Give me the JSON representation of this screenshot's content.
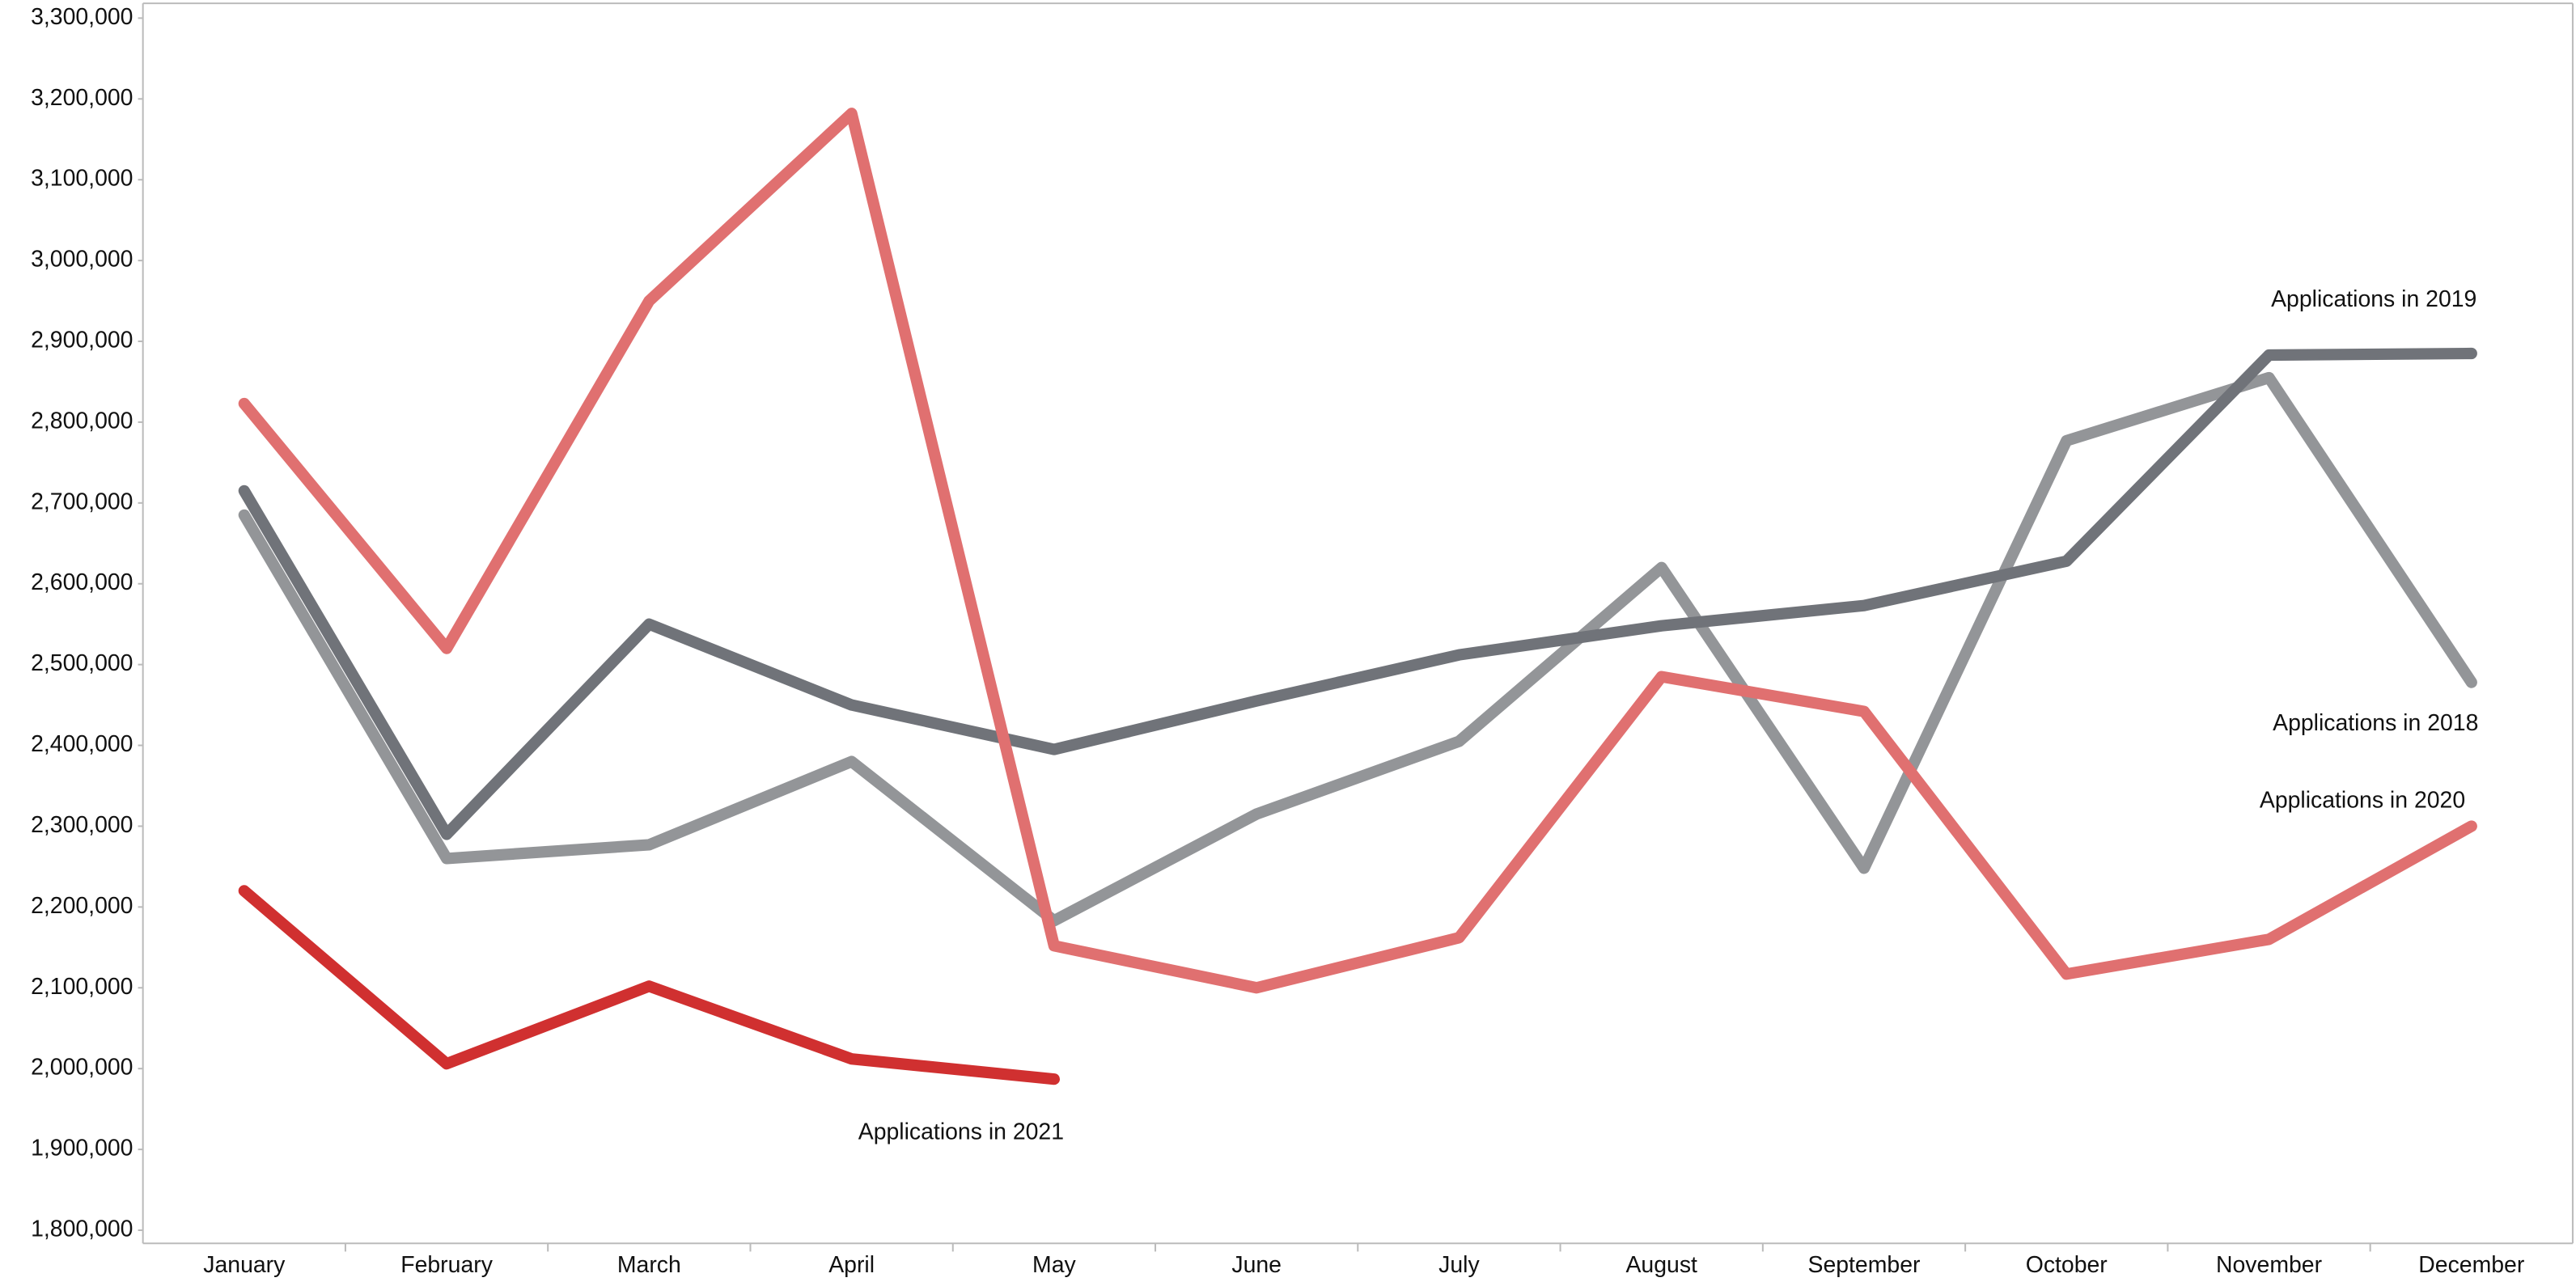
{
  "chart_data": {
    "type": "line",
    "categories": [
      "January",
      "February",
      "March",
      "April",
      "May",
      "June",
      "July",
      "August",
      "September",
      "October",
      "November",
      "December"
    ],
    "series": [
      {
        "name": "Applications in 2018",
        "color": "#939598",
        "values": [
          2685000,
          2260000,
          2277000,
          2380000,
          2183000,
          2315000,
          2405000,
          2620000,
          2248000,
          2777000,
          2855000,
          2478000
        ]
      },
      {
        "name": "Applications in 2019",
        "color": "#707379",
        "values": [
          2715000,
          2290000,
          2550000,
          2450000,
          2395000,
          2455000,
          2512000,
          2548000,
          2573000,
          2628000,
          2883000,
          2885000
        ]
      },
      {
        "name": "Applications in 2020",
        "color": "#e07070",
        "values": [
          2823000,
          2520000,
          2950000,
          3182000,
          2152000,
          2100000,
          2162000,
          2485000,
          2442000,
          2117000,
          2160000,
          2300000
        ]
      },
      {
        "name": "Applications in 2021",
        "color": "#d03030",
        "values": [
          2220000,
          2006000,
          2102000,
          2012000,
          1987000,
          null,
          null,
          null,
          null,
          null,
          null,
          null
        ]
      }
    ],
    "ylim": [
      1800000,
      3300000
    ],
    "yticks": [
      {
        "value": 1800000,
        "label": "1,800,000"
      },
      {
        "value": 1900000,
        "label": "1,900,000"
      },
      {
        "value": 2000000,
        "label": "2,000,000"
      },
      {
        "value": 2100000,
        "label": "2,100,000"
      },
      {
        "value": 2200000,
        "label": "2,200,000"
      },
      {
        "value": 2300000,
        "label": "2,300,000"
      },
      {
        "value": 2400000,
        "label": "2,400,000"
      },
      {
        "value": 2500000,
        "label": "2,500,000"
      },
      {
        "value": 2600000,
        "label": "2,600,000"
      },
      {
        "value": 2700000,
        "label": "2,700,000"
      },
      {
        "value": 2800000,
        "label": "2,800,000"
      },
      {
        "value": 2900000,
        "label": "2,900,000"
      },
      {
        "value": 3000000,
        "label": "3,000,000"
      },
      {
        "value": 3100000,
        "label": "3,100,000"
      },
      {
        "value": 3200000,
        "label": "3,200,000"
      },
      {
        "value": 3300000,
        "label": "3,300,000"
      }
    ],
    "grid": false
  }
}
